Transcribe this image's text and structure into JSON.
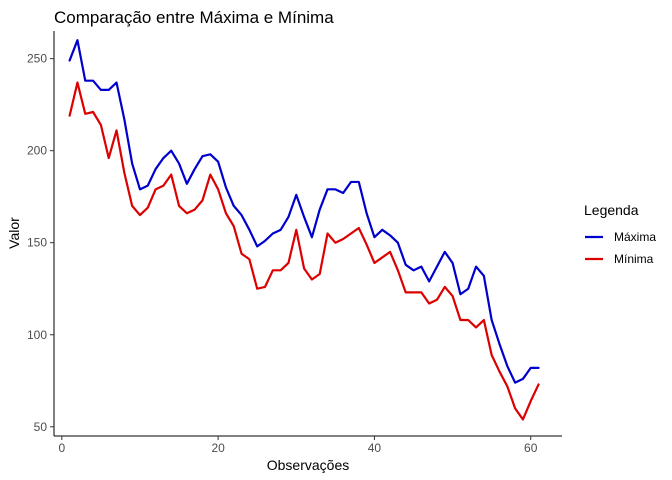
{
  "chart_data": {
    "type": "line",
    "title": "Comparação entre Máxima e Mínima",
    "xlabel": "Observações",
    "ylabel": "Valor",
    "xlim": [
      -1,
      64
    ],
    "ylim": [
      45,
      265
    ],
    "x_ticks": [
      0,
      20,
      40,
      60
    ],
    "y_ticks": [
      50,
      100,
      150,
      200,
      250
    ],
    "grid": false,
    "legend": {
      "title": "Legenda",
      "position": "right"
    },
    "x": [
      1,
      2,
      3,
      4,
      5,
      6,
      7,
      8,
      9,
      10,
      11,
      12,
      13,
      14,
      15,
      16,
      17,
      18,
      19,
      20,
      21,
      22,
      23,
      24,
      25,
      26,
      27,
      28,
      29,
      30,
      31,
      32,
      33,
      34,
      35,
      36,
      37,
      38,
      39,
      40,
      41,
      42,
      43,
      44,
      45,
      46,
      47,
      48,
      49,
      50,
      51,
      52,
      53,
      54,
      55,
      56,
      57,
      58,
      59,
      60,
      61
    ],
    "series": [
      {
        "name": "Máxima",
        "color": "#0000cd",
        "values": [
          249,
          260,
          238,
          238,
          233,
          233,
          237,
          217,
          193,
          179,
          181,
          190,
          196,
          200,
          193,
          182,
          190,
          197,
          198,
          194,
          180,
          170,
          165,
          157,
          148,
          151,
          155,
          157,
          164,
          176,
          164,
          153,
          168,
          179,
          179,
          177,
          183,
          183,
          166,
          153,
          157,
          154,
          150,
          138,
          135,
          137,
          129,
          137,
          145,
          139,
          122,
          125,
          137,
          132,
          108,
          95,
          83,
          74,
          76,
          82,
          82
        ]
      },
      {
        "name": "Mínima",
        "color": "#dd0000",
        "values": [
          219,
          237,
          220,
          221,
          214,
          196,
          211,
          188,
          170,
          165,
          169,
          179,
          181,
          187,
          170,
          166,
          168,
          173,
          187,
          179,
          166,
          159,
          144,
          141,
          125,
          126,
          135,
          135,
          139,
          157,
          136,
          130,
          133,
          155,
          150,
          152,
          155,
          158,
          149,
          139,
          142,
          145,
          135,
          123,
          123,
          123,
          117,
          119,
          126,
          121,
          108,
          108,
          104,
          108,
          89,
          80,
          72,
          60,
          54,
          64,
          73
        ]
      }
    ]
  }
}
